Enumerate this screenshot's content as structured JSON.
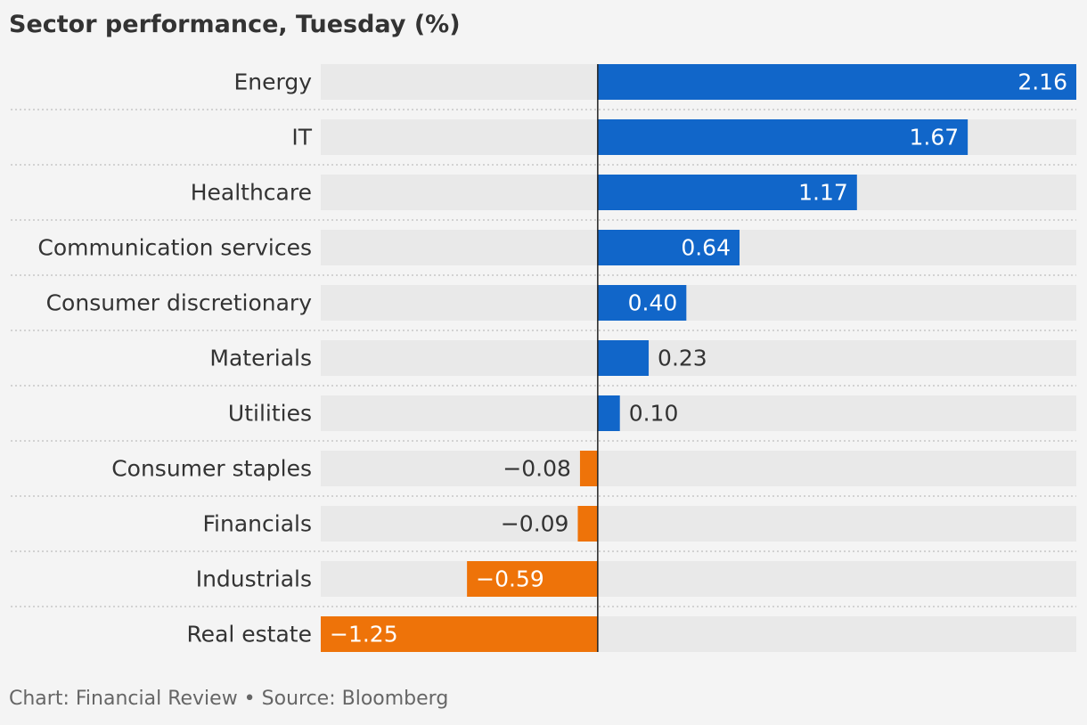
{
  "title": "Sector performance, Tuesday (%)",
  "footer": "Chart: Financial Review • Source: Bloomberg",
  "colors": {
    "positive": "#1166c9",
    "negative": "#ee7309",
    "track": "#e9e9e9",
    "background": "#f4f4f4",
    "zero_line": "#222222"
  },
  "chart_data": {
    "type": "bar",
    "orientation": "horizontal",
    "title": "Sector performance, Tuesday (%)",
    "categories": [
      "Energy",
      "IT",
      "Healthcare",
      "Communication services",
      "Consumer discretionary",
      "Materials",
      "Utilities",
      "Consumer staples",
      "Financials",
      "Industrials",
      "Real estate"
    ],
    "values": [
      2.16,
      1.67,
      1.17,
      0.64,
      0.4,
      0.23,
      0.1,
      -0.08,
      -0.09,
      -0.59,
      -1.25
    ],
    "value_labels": [
      "2.16",
      "1.67",
      "1.17",
      "0.64",
      "0.40",
      "0.23",
      "0.10",
      "−0.08",
      "−0.09",
      "−0.59",
      "−1.25"
    ],
    "xlim": [
      -1.25,
      2.16
    ],
    "grid": false,
    "legend": "none"
  }
}
